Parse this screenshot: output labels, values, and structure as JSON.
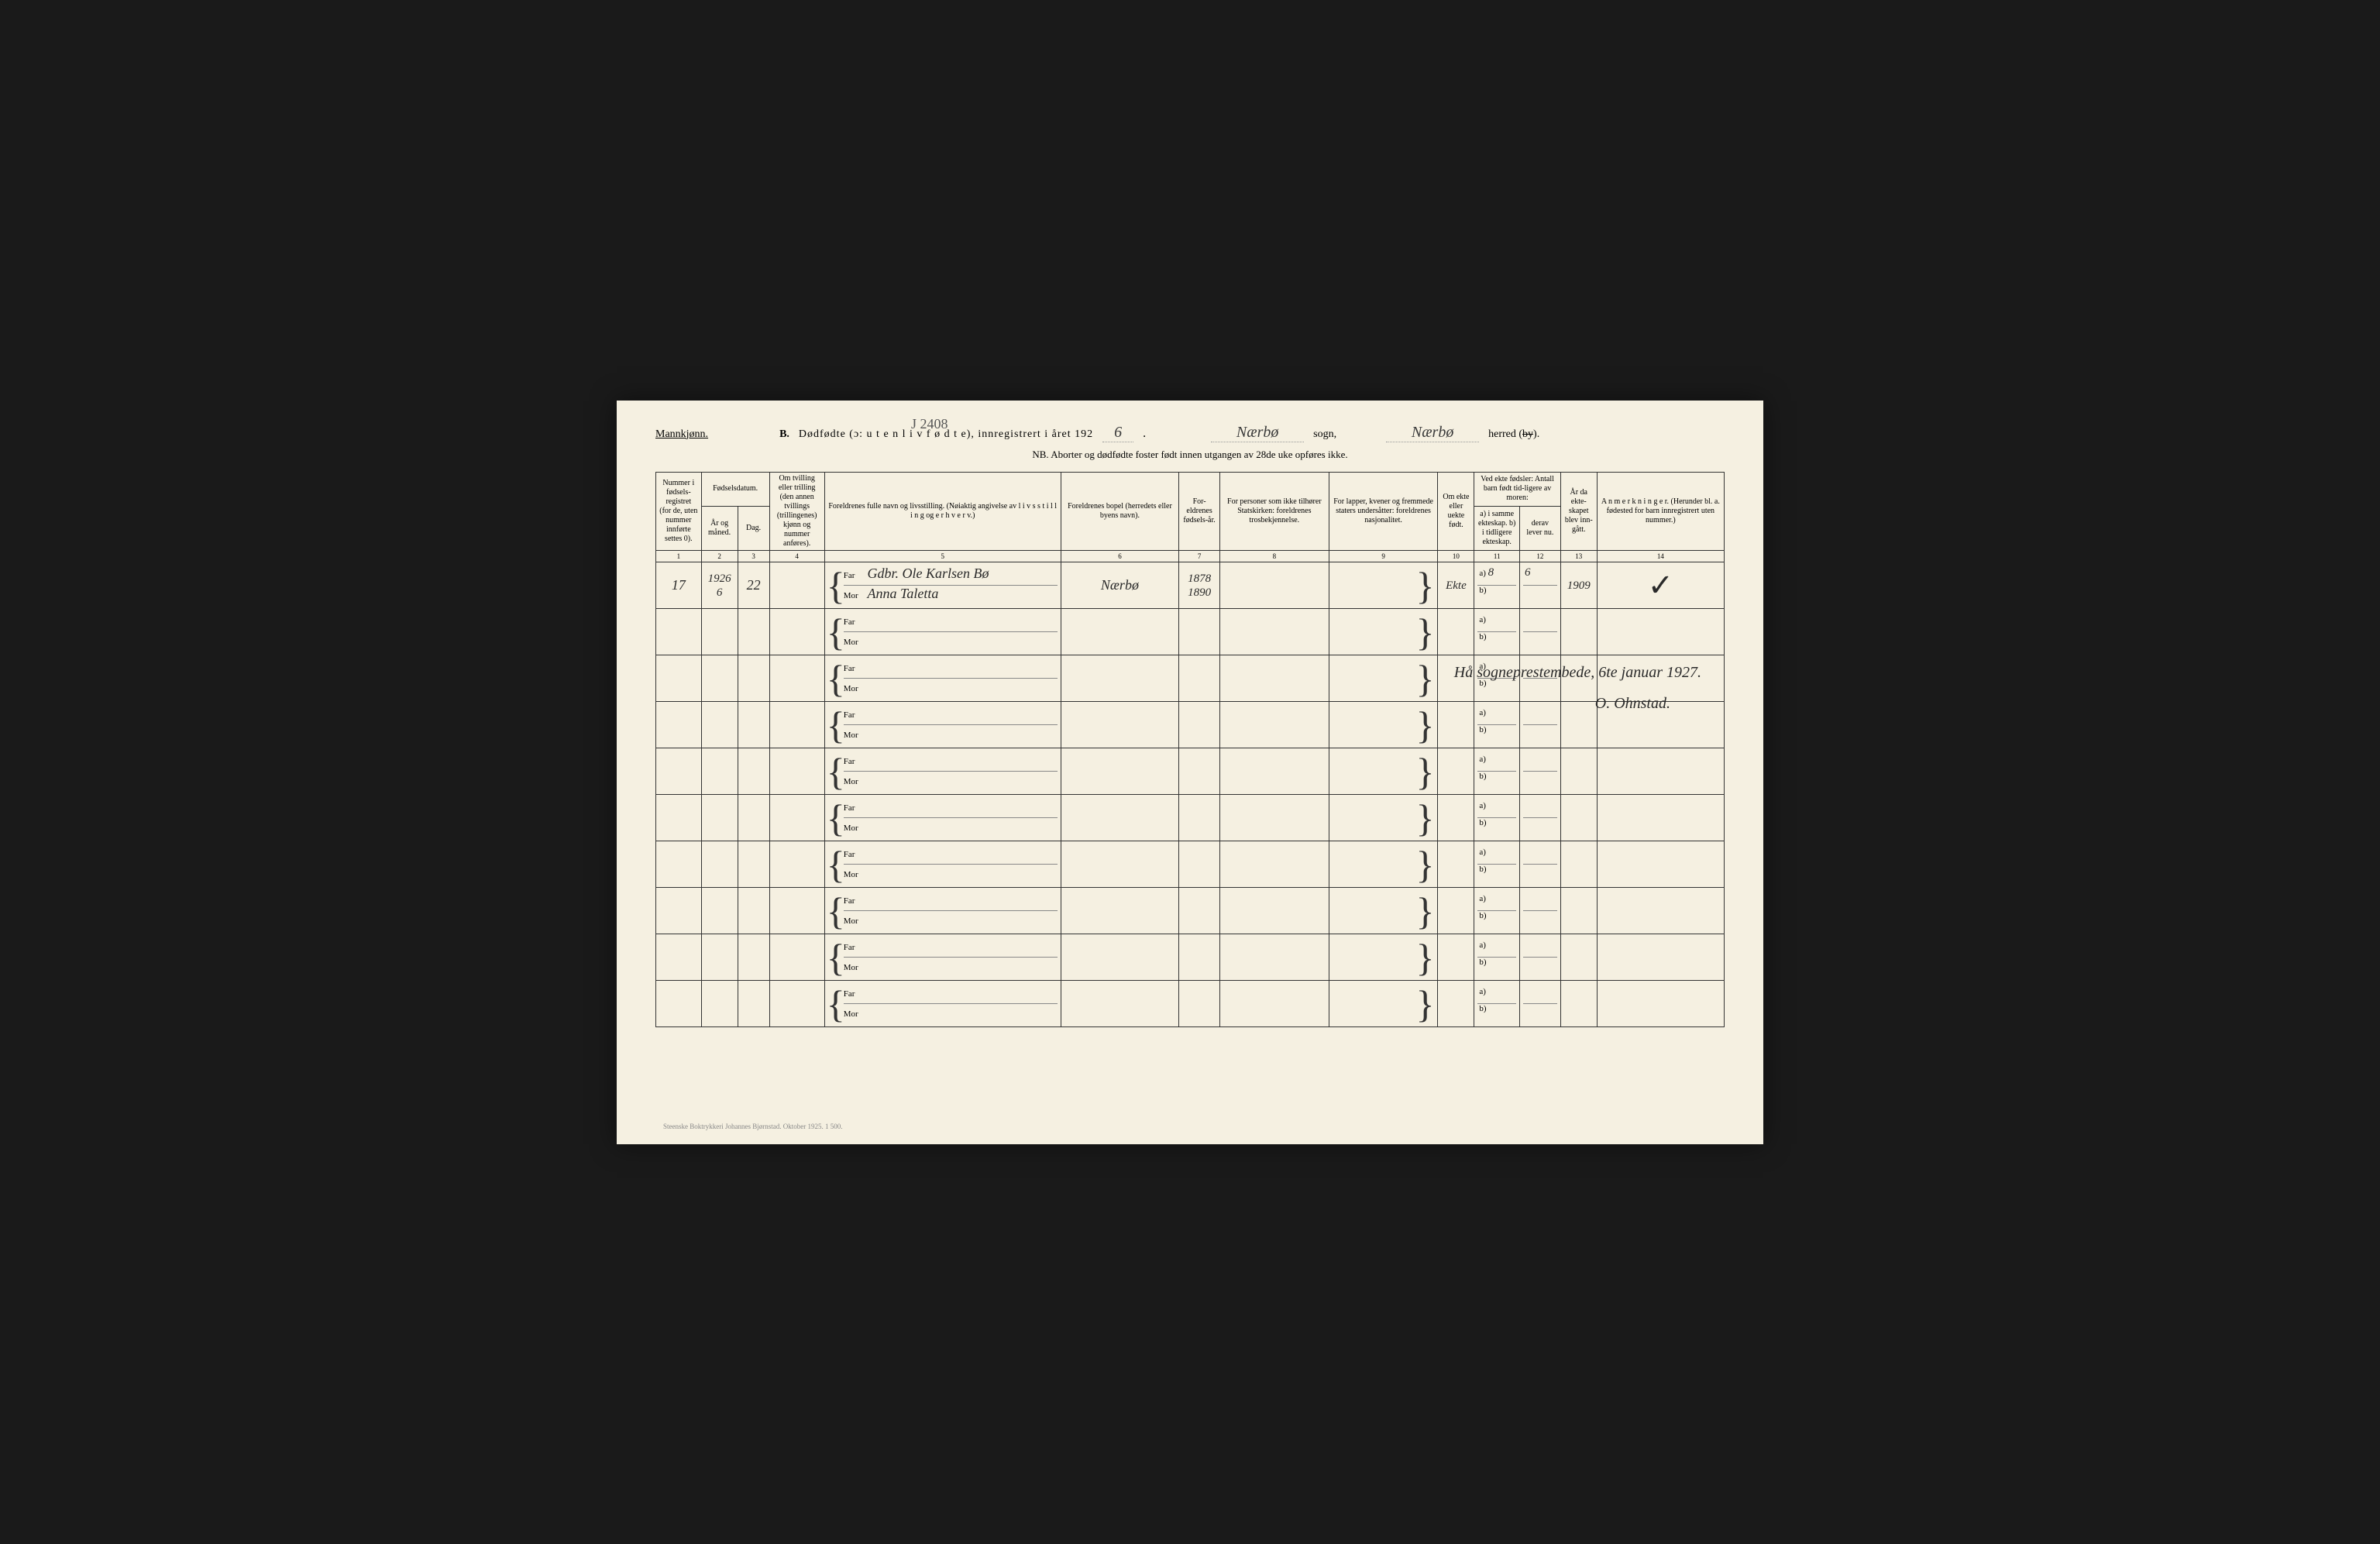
{
  "pencil_code": "J 2408",
  "header": {
    "gender": "Mannkjønn.",
    "section": "B.",
    "title": "Dødfødte (ɔ: u t e n  l i v  f ø d t e),  innregistrert i året 192",
    "year_digit": "6",
    "sogn_value": "Nærbø",
    "sogn_label": "sogn,",
    "herred_value": "Nærbø",
    "herred_label": "herred (by).",
    "nb": "NB.  Aborter og dødfødte foster født innen utgangen av 28de uke opføres ikke."
  },
  "columns": {
    "c1": "Nummer i fødsels-registret (for de, uten nummer innførte settes 0).",
    "c23": "Fødselsdatum.",
    "c2": "År og måned.",
    "c3": "Dag.",
    "c4": "Om tvilling eller trilling (den annen tvillings (trillingenes) kjønn og nummer anføres).",
    "c5": "Foreldrenes fulle navn og livsstilling. (Nøiaktig angivelse av l i v s s t i l l i n g  og e r h v e r v.)",
    "c6": "Foreldrenes bopel (herredets eller byens navn).",
    "c7": "For-eldrenes fødsels-år.",
    "c8": "For personer som ikke tilhører Statskirken: foreldrenes trosbekjennelse.",
    "c9": "For lapper, kvener og fremmede staters undersåtter: foreldrenes nasjonalitet.",
    "c10": "Om ekte eller uekte født.",
    "c1112": "Ved ekte fødsler: Antall barn født tid-ligere av moren:",
    "c11": "a) i samme ekteskap. b) i tidligere ekteskap.",
    "c12": "derav lever nu.",
    "c13": "År da ekte-skapet blev inn-gått.",
    "c14": "A n m e r k n i n g e r. (Herunder bl. a. fødested for barn innregistrert uten nummer.)"
  },
  "col_nums": [
    "1",
    "2",
    "3",
    "4",
    "5",
    "6",
    "7",
    "8",
    "9",
    "10",
    "11",
    "12",
    "13",
    "14"
  ],
  "labels": {
    "far": "Far",
    "mor": "Mor",
    "a": "a)",
    "b": "b)"
  },
  "entry": {
    "num": "17",
    "year": "1926",
    "month": "6",
    "day": "22",
    "far_occ": "Gdbr.",
    "far_name": "Ole Karlsen Bø",
    "mor_name": "Anna Taletta",
    "bopel": "Nærbø",
    "far_year": "1878",
    "mor_year": "1890",
    "ekte": "Ekte",
    "c11a": "8",
    "c12": "6",
    "c13": "1909"
  },
  "signature": {
    "line1": "Hå sogneprestembede, 6te januar 1927.",
    "line2": "O. Ohnstad."
  },
  "footer": "Steenske Boktrykkeri Johannes Bjørnstad.   Oktober 1925.   1 500."
}
